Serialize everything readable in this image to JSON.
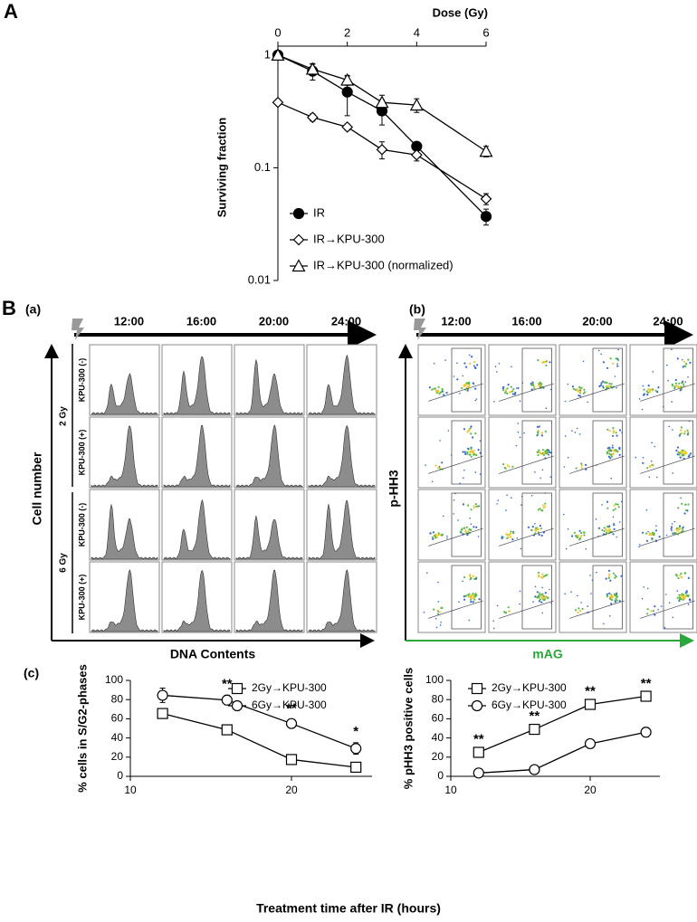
{
  "panel_a": {
    "label": "A"
  },
  "panel_b": {
    "label": "B",
    "a": {
      "label": "(a)",
      "times": [
        "12:00",
        "16:00",
        "20:00",
        "24:00"
      ],
      "doses": [
        "2 Gy",
        "6 Gy"
      ],
      "treatments": [
        "KPU-300 (-)",
        "KPU-300 (+)",
        "KPU-300 (-)",
        "KPU-300 (+)"
      ],
      "y_label": "Cell number",
      "x_label": "DNA Contents"
    },
    "b": {
      "label": "(b)",
      "times": [
        "12:00",
        "16:00",
        "20:00",
        "24:00"
      ],
      "y_label": "p-HH3",
      "x_label": "mAG"
    }
  },
  "panel_c": {
    "label": "(c)",
    "x_label": "Treatment time after IR (hours)"
  },
  "chart_data": [
    {
      "type": "line",
      "x_label": "Dose (Gy)",
      "y_label": "Surviving fraction",
      "log_y": true,
      "x_axis_position": "top",
      "x": [
        0,
        1,
        2,
        3,
        4,
        6
      ],
      "xlim": [
        0,
        6
      ],
      "xticks": [
        0,
        2,
        4,
        6
      ],
      "ylim": [
        0.01,
        1.2
      ],
      "yticks": [
        0.01,
        0.1,
        1
      ],
      "series": [
        {
          "name": "IR",
          "color": "#000000",
          "marker": "filled-circle",
          "values": [
            1,
            0.72,
            0.47,
            0.32,
            0.155,
            0.037
          ],
          "errors": [
            0.05,
            0.12,
            0.18,
            0.08,
            0.01,
            0.006
          ]
        },
        {
          "name": "IR→KPU-300",
          "color": "#000000",
          "marker": "diamond",
          "values": [
            0.38,
            0.28,
            0.23,
            0.145,
            0.13,
            0.053
          ],
          "errors": [
            0.02,
            0.02,
            0.015,
            0.025,
            0.015,
            0.006
          ]
        },
        {
          "name": "IR→KPU-300 (normalized)",
          "color": "#000000",
          "marker": "triangle",
          "values": [
            1,
            0.75,
            0.6,
            0.38,
            0.36,
            0.14
          ],
          "errors": [
            0.05,
            0.08,
            0.06,
            0.06,
            0.05,
            0.015
          ]
        }
      ]
    },
    {
      "type": "line",
      "y_label": "% cells in S/G2-phases",
      "x": [
        12,
        16,
        20,
        24
      ],
      "xlim": [
        10,
        25
      ],
      "xticks": [
        10,
        20
      ],
      "ylim": [
        0,
        100
      ],
      "yticks": [
        0,
        20,
        40,
        60,
        80,
        100
      ],
      "significance": [
        null,
        "**",
        "**",
        "*"
      ],
      "series": [
        {
          "name": "2Gy→KPU-300",
          "color": "#000000",
          "marker": "square",
          "values": [
            65.5,
            48.5,
            17.5,
            9.5
          ],
          "errors": [
            1.5,
            1.5,
            1.5,
            1.5
          ]
        },
        {
          "name": "6Gy→KPU-300",
          "color": "#000000",
          "marker": "circle",
          "values": [
            84.5,
            79.5,
            55,
            29
          ],
          "errors": [
            7.5,
            5,
            4,
            6
          ]
        }
      ]
    },
    {
      "type": "line",
      "y_label": "% pHH3 positive cells",
      "x": [
        12,
        16,
        20,
        24
      ],
      "xlim": [
        10,
        25
      ],
      "xticks": [
        10,
        20
      ],
      "ylim": [
        0,
        100
      ],
      "yticks": [
        0,
        20,
        40,
        60,
        80,
        100
      ],
      "significance": [
        "**",
        "**",
        "**",
        "**"
      ],
      "series": [
        {
          "name": "2Gy→KPU-300",
          "color": "#000000",
          "marker": "square",
          "values": [
            25,
            49,
            75,
            83.5
          ],
          "errors": [
            2,
            2,
            2,
            1.5
          ]
        },
        {
          "name": "6Gy→KPU-300",
          "color": "#000000",
          "marker": "circle",
          "values": [
            3.5,
            7,
            34,
            46
          ],
          "errors": [
            0.5,
            1,
            3,
            5
          ]
        }
      ]
    }
  ]
}
